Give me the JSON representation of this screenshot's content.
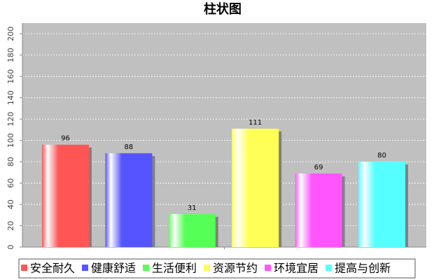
{
  "chart_data": {
    "type": "bar",
    "title": "柱状图",
    "categories": [
      null
    ],
    "series": [
      {
        "name": "安全耐久",
        "color": "#ff5555",
        "values": [
          96
        ]
      },
      {
        "name": "健康舒适",
        "color": "#5555ff",
        "values": [
          88
        ]
      },
      {
        "name": "生活便利",
        "color": "#55ff55",
        "values": [
          31
        ]
      },
      {
        "name": "资源节约",
        "color": "#ffff55",
        "values": [
          111
        ]
      },
      {
        "name": "环境宜居",
        "color": "#ff55ff",
        "values": [
          69
        ]
      },
      {
        "name": "提高与创新",
        "color": "#55ffff",
        "values": [
          80
        ]
      }
    ],
    "ylim": [
      0,
      210
    ],
    "yticks": [
      0,
      20,
      40,
      60,
      80,
      100,
      120,
      140,
      160,
      180,
      200
    ],
    "grid": true
  }
}
